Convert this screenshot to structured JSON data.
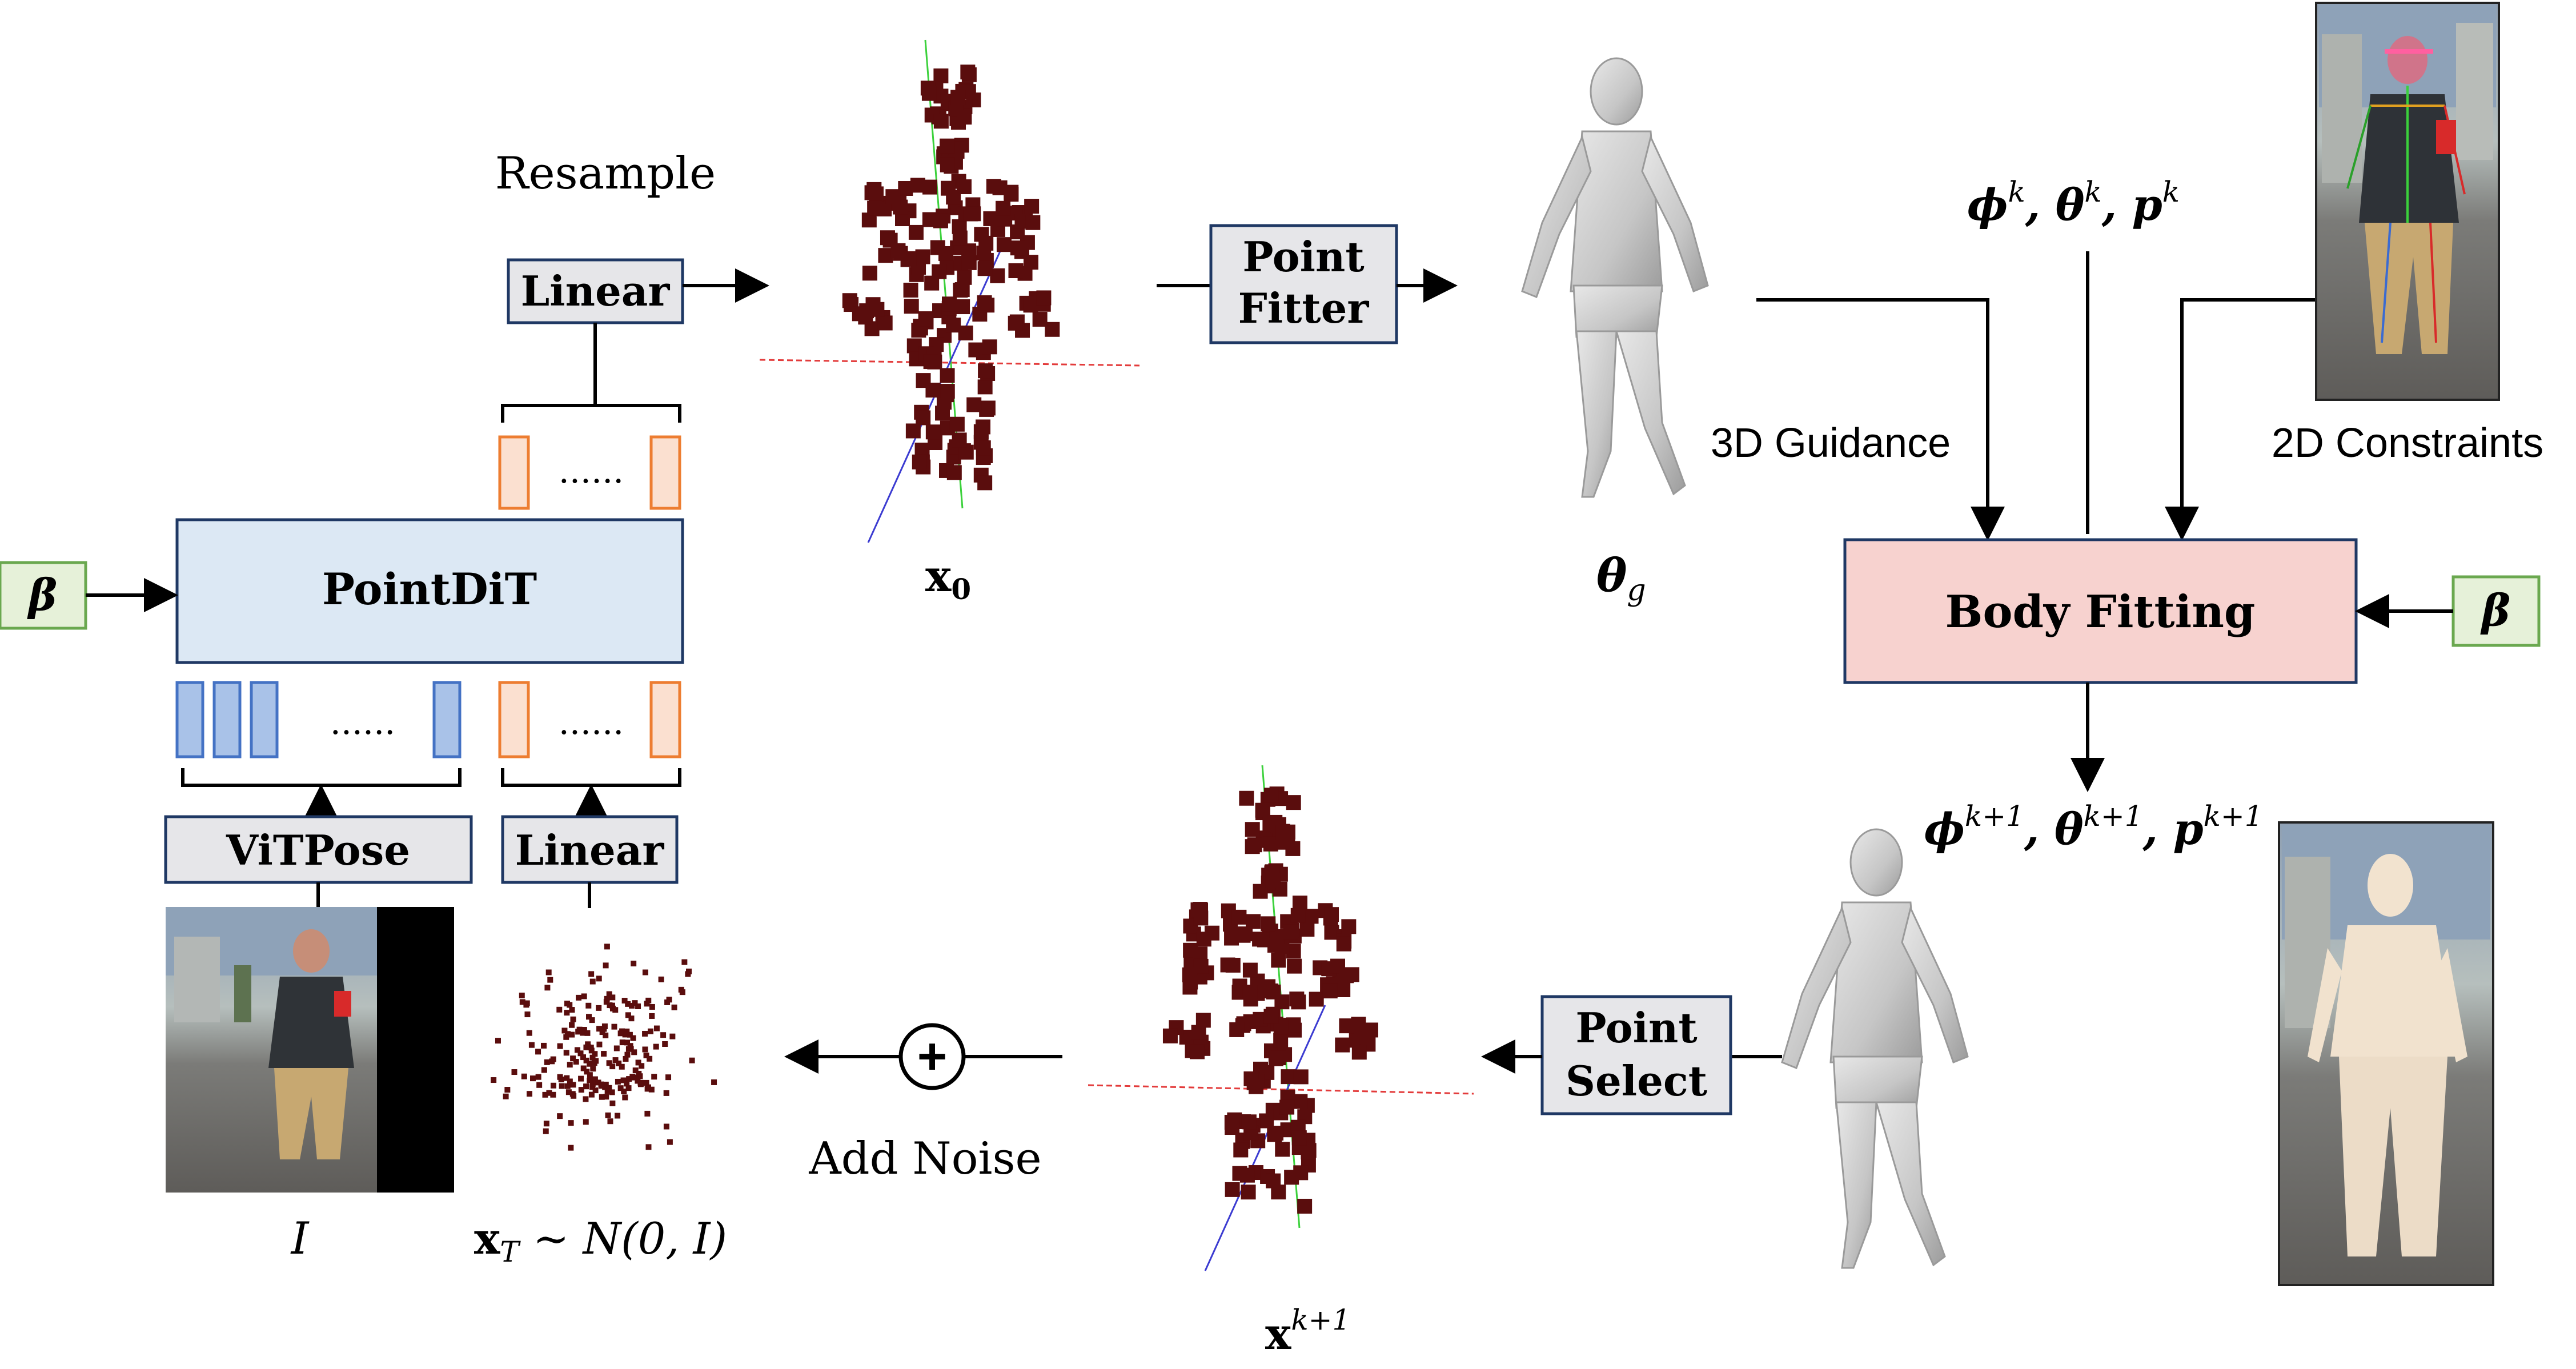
{
  "labels": {
    "resample": "Resample",
    "linear_top": "Linear",
    "pointdit": "PointDiT",
    "vitpose": "ViTPose",
    "linear_bottom": "Linear",
    "beta_left": "β",
    "beta_right": "β",
    "dots": "......",
    "point_fitter_line1": "Point",
    "point_fitter_line2": "Fitter",
    "point_select_line1": "Point",
    "point_select_line2": "Select",
    "body_fitting": "Body Fitting",
    "guidance_3d": "3D Guidance",
    "constraints_2d": "2D Constraints",
    "x0": "x",
    "x0_sub": "0",
    "theta_g": "θ",
    "theta_g_sub": "g",
    "params_k": "ϕ",
    "params_k_full": [
      "ϕ",
      "k",
      ", θ",
      "k",
      ", p",
      "k"
    ],
    "params_k1_full": [
      "ϕ",
      "k+1",
      ", θ",
      "k+1",
      ", p",
      "k+1"
    ],
    "xk1": "x",
    "xk1_sup": "k+1",
    "add_noise": "Add Noise",
    "plus_symbol": "+",
    "input_image": "I",
    "xT_base": "x",
    "xT_sub": "T",
    "xT_rest": " ∼ N(0, I)"
  },
  "colors": {
    "box_gray": "#e6e6e9",
    "box_blue": "#dce8f4",
    "box_pink": "#f7d2cf",
    "box_green": "#e6f1d9",
    "green_border": "#6aa84f",
    "blue_token": "#a9c2e8",
    "blue_token_border": "#4472c4",
    "orange_token": "#fbe0d0",
    "orange_token_border": "#ed7d31",
    "point_color": "#5a0d0d",
    "axis_red": "#e33b3b",
    "axis_green": "#3bd13b",
    "axis_blue": "#3b3bd1",
    "mesh_gray": "#c8c8c8"
  },
  "icons": [
    "plus-circle-icon",
    "arrow-icon"
  ]
}
